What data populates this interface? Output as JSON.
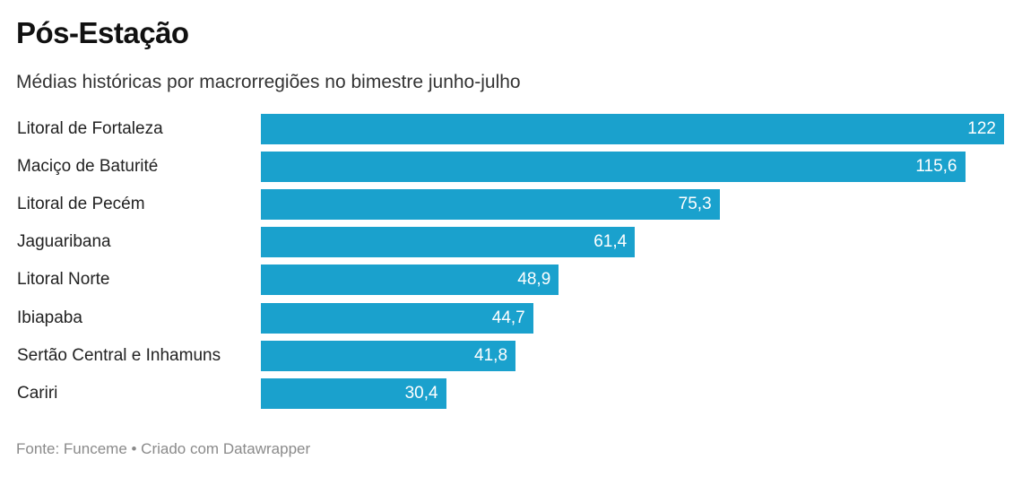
{
  "chart_data": {
    "type": "bar",
    "orientation": "horizontal",
    "title": "Pós-Estação",
    "subtitle": "Médias históricas por macrorregiões no bimestre junho-julho",
    "categories": [
      "Litoral de Fortaleza",
      "Maciço de Baturité",
      "Litoral de Pecém",
      "Jaguaribana",
      "Litoral Norte",
      "Ibiapaba",
      "Sertão Central e Inhamuns",
      "Cariri"
    ],
    "values": [
      122,
      115.6,
      75.3,
      61.4,
      48.9,
      44.7,
      41.8,
      30.4
    ],
    "value_labels": [
      "122",
      "115,6",
      "75,3",
      "61,4",
      "48,9",
      "44,7",
      "41,8",
      "30,4"
    ],
    "xlim": [
      0,
      122
    ],
    "grid": false,
    "bar_color": "#1aa1cd",
    "footer": "Fonte: Funceme • Criado com Datawrapper"
  }
}
